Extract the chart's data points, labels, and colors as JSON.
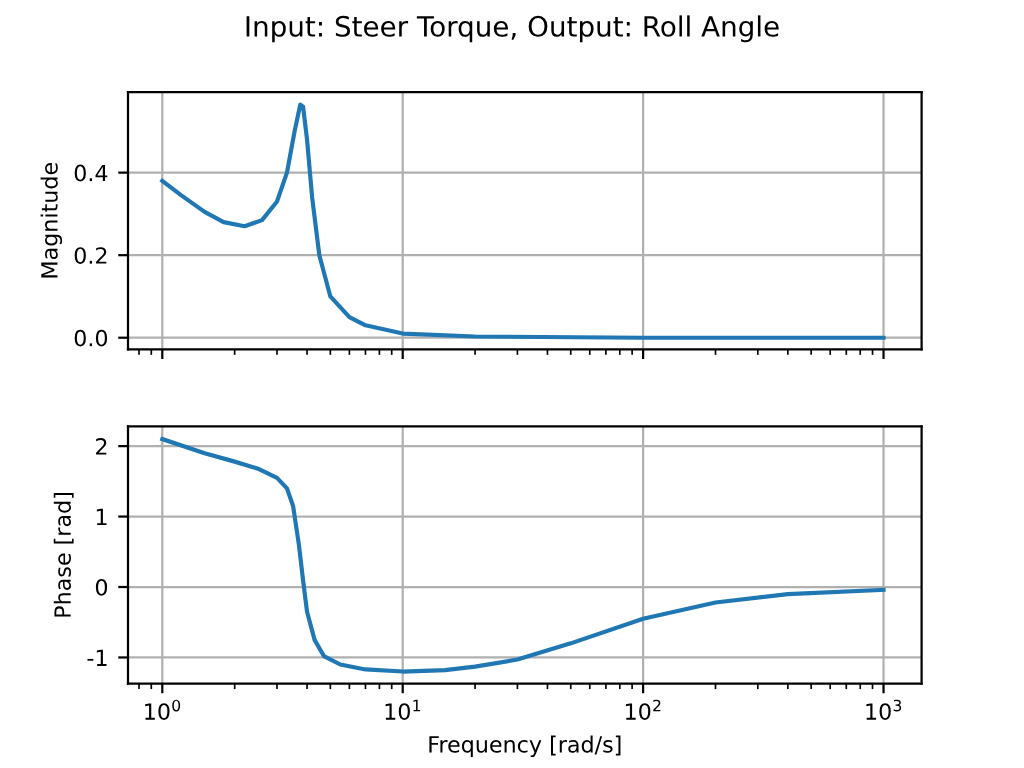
{
  "chart_data": [
    {
      "type": "line",
      "title": "Input: Steer Torque, Output: Roll Angle",
      "ylabel": "Magnitude",
      "log": "x",
      "grid": true,
      "tick_labels": "y",
      "xlim": [
        0.72,
        1440
      ],
      "xticks": [
        1,
        10,
        100,
        1000
      ],
      "ylim": [
        -0.028,
        0.595
      ],
      "yticks": [
        {
          "value": 0,
          "label": "0.0"
        },
        {
          "value": 0.2,
          "label": "0.2"
        },
        {
          "value": 0.4,
          "label": "0.4"
        }
      ],
      "series": [
        {
          "color": "#1f77b4",
          "x": [
            1,
            1.2,
            1.5,
            1.8,
            2.2,
            2.6,
            3.0,
            3.3,
            3.55,
            3.75,
            3.85,
            4.0,
            4.2,
            4.5,
            5,
            6,
            7,
            10,
            20,
            100,
            1000
          ],
          "values": [
            0.38,
            0.345,
            0.305,
            0.28,
            0.27,
            0.285,
            0.33,
            0.4,
            0.5,
            0.565,
            0.56,
            0.48,
            0.34,
            0.2,
            0.1,
            0.05,
            0.03,
            0.01,
            0.003,
            0.0,
            0.0
          ]
        }
      ]
    },
    {
      "type": "line",
      "xlabel": "Frequency [rad/s]",
      "ylabel": "Phase [rad]",
      "log": "x",
      "grid": true,
      "xlim": [
        0.72,
        1440
      ],
      "xticks": [
        {
          "value": 1,
          "label": "10$^{0}$"
        },
        {
          "value": 10,
          "label": "10$^{1}$"
        },
        {
          "value": 100,
          "label": "10$^{2}$"
        },
        {
          "value": 1000,
          "label": "10$^{3}$"
        }
      ],
      "ylim": [
        -1.37,
        2.28
      ],
      "yticks": [
        -1,
        0,
        1,
        2
      ],
      "series": [
        {
          "color": "#1f77b4",
          "x": [
            1,
            1.5,
            2,
            2.5,
            3,
            3.3,
            3.5,
            3.7,
            3.85,
            4.0,
            4.3,
            4.7,
            5.5,
            7,
            10,
            15,
            20,
            30,
            50,
            100,
            200,
            400,
            1000
          ],
          "values": [
            2.1,
            1.9,
            1.78,
            1.68,
            1.55,
            1.4,
            1.15,
            0.6,
            0.1,
            -0.35,
            -0.75,
            -0.98,
            -1.1,
            -1.17,
            -1.2,
            -1.18,
            -1.13,
            -1.03,
            -0.8,
            -0.45,
            -0.22,
            -0.1,
            -0.04
          ]
        }
      ]
    }
  ]
}
